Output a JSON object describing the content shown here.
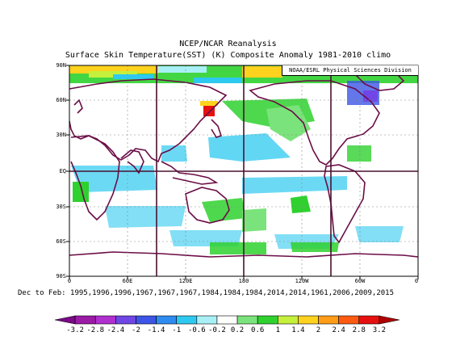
{
  "title": "NCEP/NCAR Reanalysis",
  "subtitle": "Surface Skin Temperature(SST) (K) Composite Anomaly 1981-2010 climo",
  "credit": "NOAA/ESRL Physical Sciences Division",
  "dates_label": "Dec to Feb: 1995,1996,1996,1967,1967,1967,1984,1984,1984,2014,2014,1961,2006,2009,2015",
  "lat_labels": [
    "90N",
    "60N",
    "30N",
    "EQ",
    "30S",
    "60S",
    "90S"
  ],
  "lon_labels": [
    "0",
    "60E",
    "120E",
    "180",
    "120W",
    "60W",
    "0"
  ],
  "colorbar": {
    "labels": [
      "-3.2",
      "-2.8",
      "-2.4",
      "-2",
      "-1.4",
      "-1",
      "-0.6",
      "-0.2",
      "0.2",
      "0.6",
      "1",
      "1.4",
      "2",
      "2.4",
      "2.8",
      "3.2"
    ],
    "colors": [
      "#7a0a86",
      "#9b1aa6",
      "#b02fcf",
      "#7046e6",
      "#3c55e6",
      "#2e8bf0",
      "#2ec9f0",
      "#a8f0f6",
      "#ffffff",
      "#7be37b",
      "#2fd12f",
      "#c5f03c",
      "#ffd21e",
      "#ff9c18",
      "#ff5a12",
      "#e61010",
      "#b00000"
    ]
  },
  "colors": {
    "land": "#6b0d46",
    "grid": "#888888",
    "frame": "#000000"
  }
}
